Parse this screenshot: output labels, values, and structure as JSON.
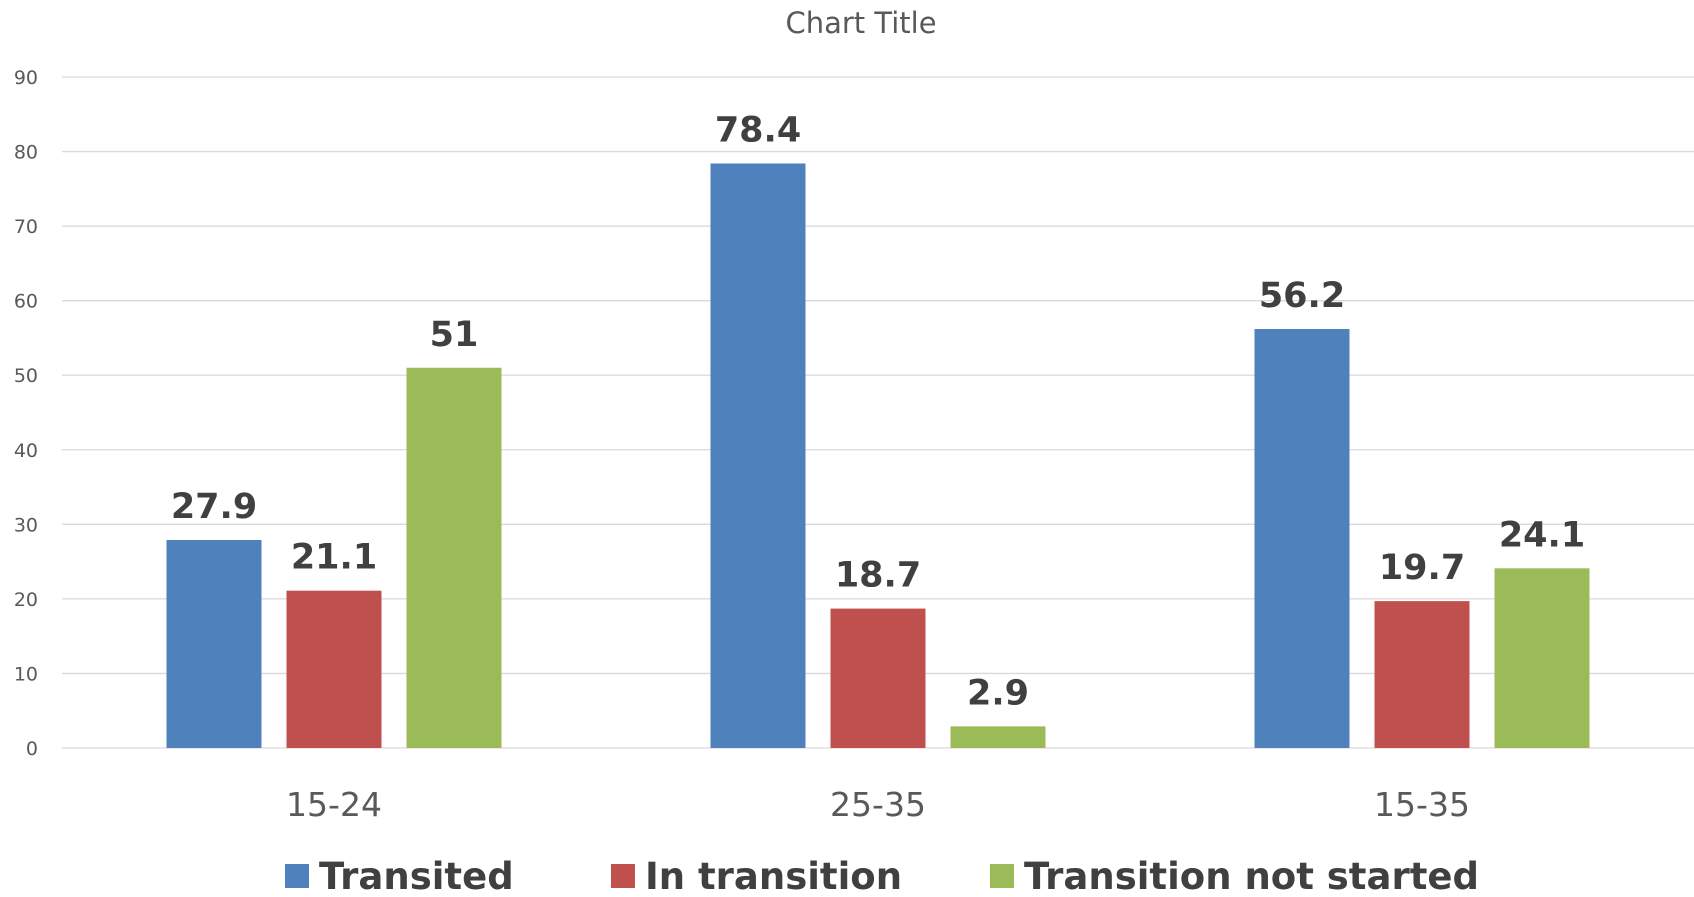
{
  "chart_data": {
    "type": "bar",
    "title": "Chart Title",
    "categories": [
      "15-24",
      "25-35",
      "15-35"
    ],
    "series": [
      {
        "name": "Transited",
        "values": [
          27.9,
          78.4,
          56.2
        ],
        "color": "#4f81bd",
        "labels": [
          "27.9",
          "78.4",
          "56.2"
        ]
      },
      {
        "name": "In transition",
        "values": [
          21.1,
          18.7,
          19.7
        ],
        "color": "#c0504d",
        "labels": [
          "21.1",
          "18.7",
          "19.7"
        ]
      },
      {
        "name": "Transition not started",
        "values": [
          51,
          2.9,
          24.1
        ],
        "color": "#9bbb59",
        "labels": [
          "51",
          "2.9",
          "24.1"
        ]
      }
    ],
    "ylim": [
      0,
      90
    ],
    "yticks": [
      "0",
      "10",
      "20",
      "30",
      "40",
      "50",
      "60",
      "70",
      "80",
      "90"
    ],
    "grid": true,
    "legend": "bottom"
  }
}
